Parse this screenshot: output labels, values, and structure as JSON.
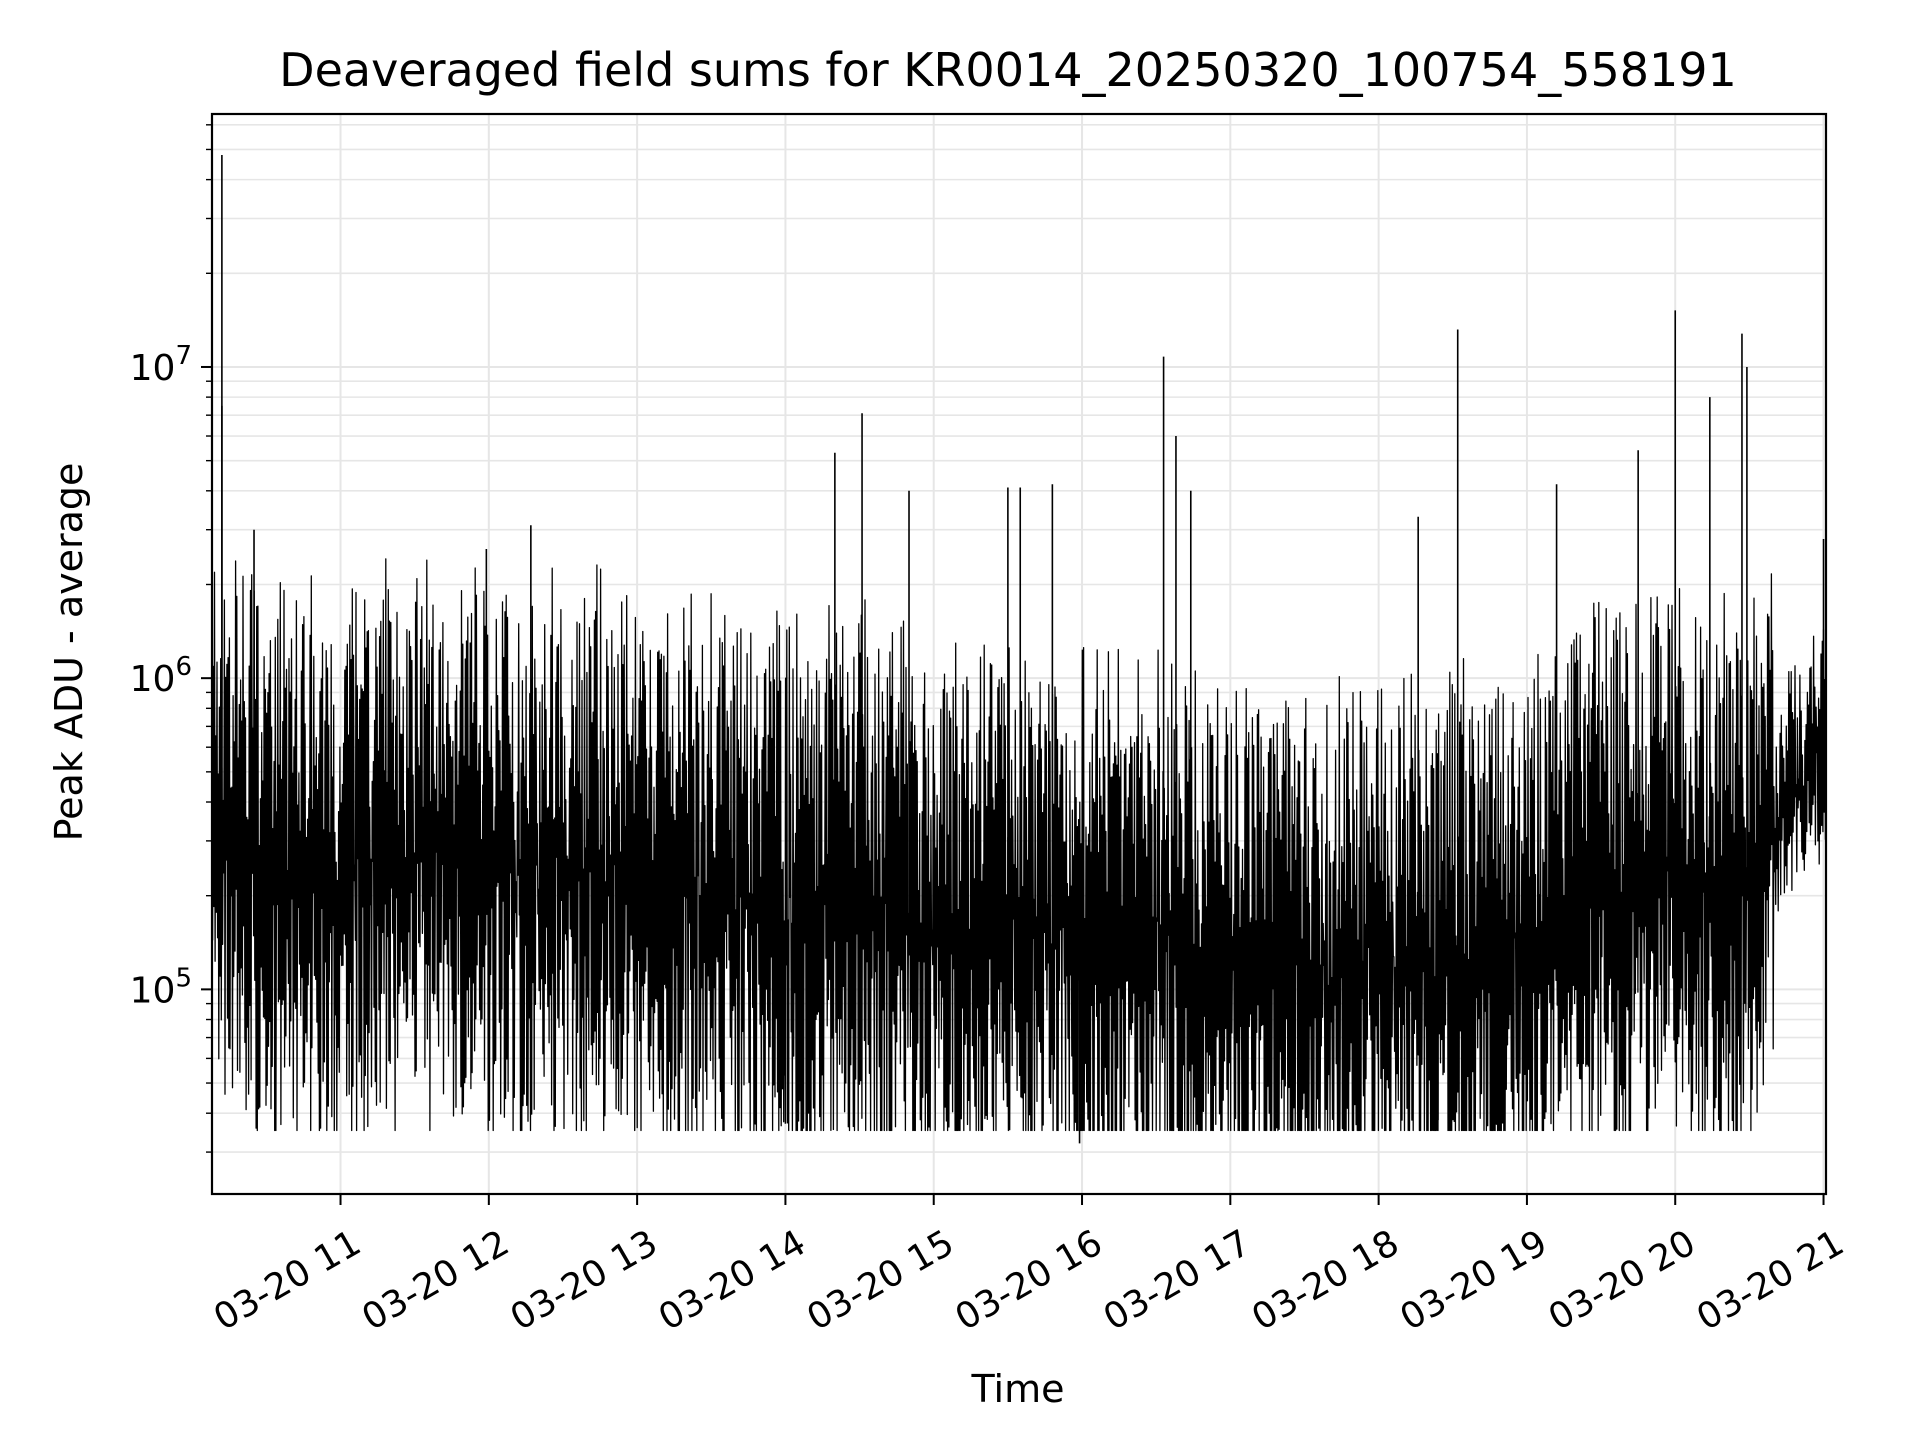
{
  "chart_data": {
    "type": "line",
    "title": "Deaveraged field sums for KR0014_20250320_100754_558191",
    "xlabel": "Time",
    "ylabel": "Peak ADU - average",
    "yscale": "log",
    "ylim": [
      22000,
      65000000
    ],
    "xlim": [
      "03-20 10:08",
      "03-20 21:01"
    ],
    "grid": true,
    "line_color": "#000000",
    "grid_color": "#e6e6e6",
    "x_ticks": [
      "03-20 11",
      "03-20 12",
      "03-20 13",
      "03-20 14",
      "03-20 15",
      "03-20 16",
      "03-20 17",
      "03-20 18",
      "03-20 19",
      "03-20 20",
      "03-20 21"
    ],
    "y_ticks": [
      {
        "value": 100000,
        "base": "10",
        "exp": "5"
      },
      {
        "value": 1000000,
        "base": "10",
        "exp": "6"
      },
      {
        "value": 10000000,
        "base": "10",
        "exp": "7"
      }
    ],
    "series": [
      {
        "x": [
          "03-20 10:08",
          "03-20 10:15",
          "03-20 10:30",
          "03-20 10:45",
          "03-20 11:00",
          "03-20 11:15",
          "03-20 11:30",
          "03-20 11:45",
          "03-20 12:00",
          "03-20 12:15",
          "03-20 12:30",
          "03-20 12:45",
          "03-20 13:00",
          "03-20 13:15",
          "03-20 13:30",
          "03-20 13:45",
          "03-20 14:00",
          "03-20 14:15",
          "03-20 14:30",
          "03-20 14:45",
          "03-20 15:00",
          "03-20 15:15",
          "03-20 15:30",
          "03-20 15:45",
          "03-20 16:00",
          "03-20 16:15",
          "03-20 16:30",
          "03-20 16:45",
          "03-20 17:00",
          "03-20 17:15",
          "03-20 17:30",
          "03-20 17:45",
          "03-20 18:00",
          "03-20 18:15",
          "03-20 18:30",
          "03-20 18:45",
          "03-20 19:00",
          "03-20 19:15",
          "03-20 19:30",
          "03-20 19:45",
          "03-20 20:00",
          "03-20 20:15",
          "03-20 20:30",
          "03-20 20:45",
          "03-20 21:00"
        ],
        "y": [
          350000,
          300000,
          250000,
          220000,
          230000,
          260000,
          300000,
          280000,
          250000,
          220000,
          240000,
          260000,
          230000,
          220000,
          200000,
          190000,
          180000,
          190000,
          200000,
          170000,
          160000,
          150000,
          170000,
          150000,
          130000,
          140000,
          150000,
          130000,
          120000,
          115000,
          110000,
          112000,
          115000,
          118000,
          125000,
          120000,
          140000,
          180000,
          220000,
          200000,
          230000,
          200000,
          220000,
          420000,
          600000
        ]
      }
    ],
    "spikes": [
      {
        "x": "03-20 10:12",
        "y": 48000000
      },
      {
        "x": "03-20 10:12",
        "y": 7500000
      },
      {
        "x": "03-20 10:25",
        "y": 3000000
      },
      {
        "x": "03-20 11:59",
        "y": 2600000
      },
      {
        "x": "03-20 12:17",
        "y": 3100000
      },
      {
        "x": "03-20 14:20",
        "y": 5300000
      },
      {
        "x": "03-20 14:31",
        "y": 7100000
      },
      {
        "x": "03-20 14:50",
        "y": 4000000
      },
      {
        "x": "03-20 15:30",
        "y": 4100000
      },
      {
        "x": "03-20 15:35",
        "y": 4100000
      },
      {
        "x": "03-20 15:48",
        "y": 4200000
      },
      {
        "x": "03-20 16:33",
        "y": 10800000
      },
      {
        "x": "03-20 16:38",
        "y": 6000000
      },
      {
        "x": "03-20 16:44",
        "y": 4000000
      },
      {
        "x": "03-20 18:16",
        "y": 3300000
      },
      {
        "x": "03-20 18:32",
        "y": 13200000
      },
      {
        "x": "03-20 19:12",
        "y": 4200000
      },
      {
        "x": "03-20 19:45",
        "y": 5400000
      },
      {
        "x": "03-20 20:00",
        "y": 15200000
      },
      {
        "x": "03-20 20:14",
        "y": 8000000
      },
      {
        "x": "03-20 20:27",
        "y": 12800000
      },
      {
        "x": "03-20 20:29",
        "y": 10000000
      },
      {
        "x": "03-20 21:00",
        "y": 2800000
      }
    ],
    "dips": [
      {
        "x": "03-20 15:59",
        "y": 32000
      },
      {
        "x": "03-20 14:00",
        "y": 37000
      },
      {
        "x": "03-20 10:55",
        "y": 42000
      },
      {
        "x": "03-20 18:24",
        "y": 38000
      },
      {
        "x": "03-20 18:50",
        "y": 39000
      }
    ]
  }
}
